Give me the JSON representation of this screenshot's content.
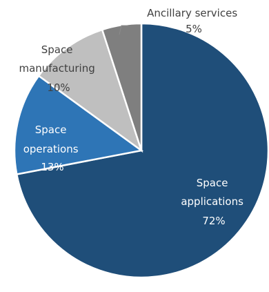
{
  "chart_data": {
    "type": "pie",
    "title": "",
    "slices": [
      {
        "label": "Space applications",
        "value": 72,
        "value_label": "72%",
        "color": "#1f4e79"
      },
      {
        "label": "Space operations",
        "value": 13,
        "value_label": "13%",
        "color": "#2e75b6"
      },
      {
        "label": "Space manufacturing",
        "value": 10,
        "value_label": "10%",
        "color": "#bfbfbf"
      },
      {
        "label": "Ancillary services",
        "value": 5,
        "value_label": "5%",
        "color": "#7f7f7f"
      }
    ],
    "start_angle": "12 o'clock",
    "direction": "clockwise",
    "legend": "none",
    "data_labels": "category name and percentage on slices; Ancillary services label outside with leader line"
  }
}
